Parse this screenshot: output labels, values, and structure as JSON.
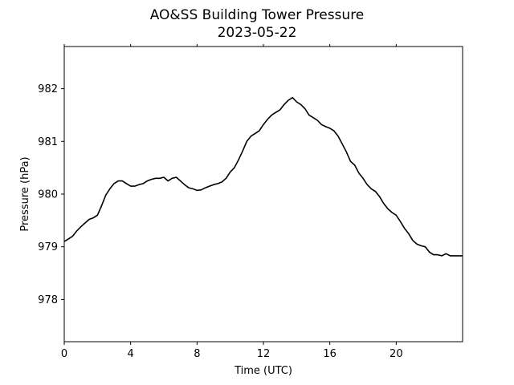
{
  "chart_data": {
    "type": "line",
    "title": "AO&SS Building Tower Pressure",
    "subtitle": "2023-05-22",
    "xlabel": "Time (UTC)",
    "ylabel": "Pressure (hPa)",
    "xlim": [
      0,
      24
    ],
    "ylim": [
      977.2,
      982.8
    ],
    "xticks": [
      0,
      4,
      8,
      12,
      16,
      20
    ],
    "xtick_labels": [
      "0",
      "4",
      "8",
      "12",
      "16",
      "20"
    ],
    "yticks": [
      978,
      979,
      980,
      981,
      982
    ],
    "ytick_labels": [
      "978",
      "979",
      "980",
      "981",
      "982"
    ],
    "grid": false,
    "legend": "none",
    "series_color": "#000000",
    "x": [
      0,
      0.25,
      0.5,
      0.75,
      1,
      1.25,
      1.5,
      1.75,
      2,
      2.25,
      2.5,
      2.75,
      3,
      3.25,
      3.5,
      3.75,
      4,
      4.25,
      4.5,
      4.75,
      5,
      5.25,
      5.5,
      5.75,
      6,
      6.25,
      6.5,
      6.75,
      7,
      7.25,
      7.5,
      7.75,
      8,
      8.25,
      8.5,
      8.75,
      9,
      9.25,
      9.5,
      9.75,
      10,
      10.25,
      10.5,
      10.75,
      11,
      11.25,
      11.5,
      11.75,
      12,
      12.25,
      12.5,
      12.75,
      13,
      13.25,
      13.5,
      13.75,
      14,
      14.25,
      14.5,
      14.75,
      15,
      15.25,
      15.5,
      15.75,
      16,
      16.25,
      16.5,
      16.75,
      17,
      17.25,
      17.5,
      17.75,
      18,
      18.25,
      18.5,
      18.75,
      19,
      19.25,
      19.5,
      19.75,
      20,
      20.25,
      20.5,
      20.75,
      21,
      21.25,
      21.5,
      21.75,
      22,
      22.25,
      22.5,
      22.75,
      23,
      23.25,
      23.5,
      23.75,
      24
    ],
    "values": [
      979.1,
      979.15,
      979.2,
      979.3,
      979.38,
      979.45,
      979.52,
      979.55,
      979.6,
      979.78,
      979.98,
      980.1,
      980.2,
      980.25,
      980.25,
      980.2,
      980.15,
      980.15,
      980.18,
      980.2,
      980.25,
      980.28,
      980.3,
      980.3,
      980.32,
      980.25,
      980.3,
      980.32,
      980.25,
      980.18,
      980.12,
      980.1,
      980.07,
      980.08,
      980.12,
      980.15,
      980.18,
      980.2,
      980.23,
      980.3,
      980.42,
      980.5,
      980.65,
      980.82,
      981.0,
      981.1,
      981.15,
      981.2,
      981.32,
      981.42,
      981.5,
      981.55,
      981.6,
      981.7,
      981.78,
      981.83,
      981.75,
      981.7,
      981.62,
      981.5,
      981.45,
      981.4,
      981.32,
      981.28,
      981.25,
      981.2,
      981.1,
      980.95,
      980.8,
      980.62,
      980.55,
      980.4,
      980.3,
      980.18,
      980.1,
      980.05,
      979.95,
      979.82,
      979.72,
      979.65,
      979.6,
      979.48,
      979.35,
      979.25,
      979.12,
      979.05,
      979.02,
      979.0,
      978.9,
      978.85,
      978.85,
      978.83,
      978.87,
      978.83,
      978.83,
      978.83,
      978.83
    ]
  }
}
